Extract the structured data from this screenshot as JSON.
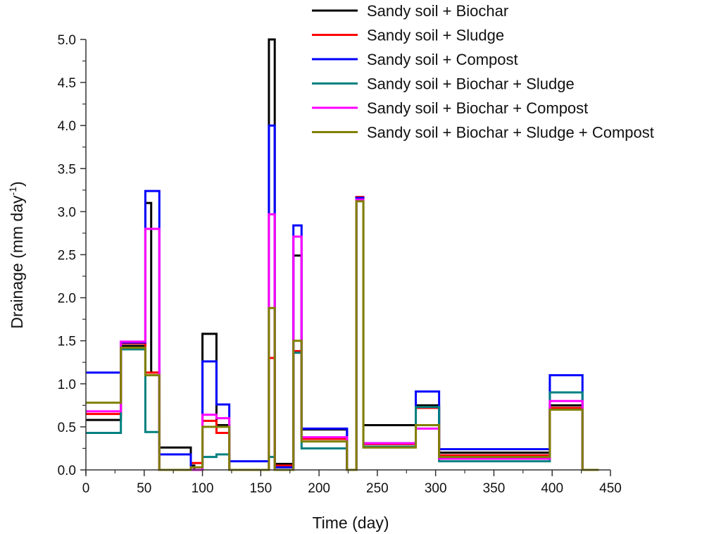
{
  "chart_data": {
    "type": "line",
    "title": "",
    "xlabel": "Time (day)",
    "ylabel_main": "Drainage (mm day",
    "ylabel_sup": "-1",
    "ylabel_close": ")",
    "xlim": [
      0,
      450
    ],
    "ylim": [
      0,
      5.0
    ],
    "xticks": [
      0,
      50,
      100,
      150,
      200,
      250,
      300,
      350,
      400,
      450
    ],
    "xtick_labels": [
      "0",
      "50",
      "100",
      "150",
      "200",
      "250",
      "300",
      "350",
      "400",
      "450"
    ],
    "yticks": [
      0,
      0.5,
      1.0,
      1.5,
      2.0,
      2.5,
      3.0,
      3.5,
      4.0,
      4.5,
      5.0
    ],
    "ytick_labels": [
      "0.0",
      "0.5",
      "1.0",
      "1.5",
      "2.0",
      "2.5",
      "3.0",
      "3.5",
      "4.0",
      "4.5",
      "5.0"
    ],
    "grid": false,
    "legend_position": "top-right",
    "step": true,
    "series": [
      {
        "name": "Sandy soil + Biochar",
        "color": "#000000",
        "x": [
          0,
          30,
          51,
          56,
          63,
          90,
          93,
          100,
          112,
          123,
          156,
          157,
          162,
          178,
          185,
          224,
          232,
          238,
          283,
          303,
          398,
          426,
          440
        ],
        "values": [
          0.58,
          1.44,
          3.1,
          1.13,
          0.26,
          0.05,
          0.0,
          1.58,
          0.52,
          0.0,
          0.0,
          5.0,
          0.07,
          2.49,
          0.47,
          0.0,
          3.16,
          0.52,
          0.75,
          0.2,
          0.75,
          0.0,
          0.0
        ]
      },
      {
        "name": "Sandy soil + Sludge",
        "color": "#ff0000",
        "x": [
          0,
          30,
          51,
          56,
          63,
          90,
          93,
          100,
          112,
          123,
          156,
          157,
          162,
          178,
          185,
          224,
          232,
          238,
          283,
          303,
          398,
          426,
          440
        ],
        "values": [
          0.65,
          1.47,
          1.13,
          1.13,
          0.0,
          0.08,
          0.08,
          0.57,
          0.43,
          0.0,
          0.0,
          1.3,
          0.05,
          1.38,
          0.36,
          0.0,
          3.17,
          0.3,
          0.72,
          0.17,
          0.72,
          0.0,
          0.0
        ]
      },
      {
        "name": "Sandy soil + Compost",
        "color": "#0000ff",
        "x": [
          0,
          30,
          51,
          56,
          63,
          90,
          93,
          100,
          112,
          123,
          156,
          157,
          162,
          178,
          185,
          224,
          232,
          238,
          283,
          303,
          398,
          426,
          440
        ],
        "values": [
          1.13,
          1.48,
          3.24,
          3.24,
          0.18,
          0.0,
          0.0,
          1.26,
          0.76,
          0.1,
          0.1,
          4.0,
          0.03,
          2.84,
          0.48,
          0.0,
          3.16,
          0.31,
          0.91,
          0.24,
          1.1,
          0.0,
          0.0
        ]
      },
      {
        "name": "Sandy soil + Biochar + Sludge",
        "color": "#008080",
        "x": [
          0,
          30,
          51,
          56,
          63,
          90,
          93,
          100,
          112,
          123,
          156,
          157,
          162,
          178,
          185,
          224,
          232,
          238,
          283,
          303,
          398,
          426,
          440
        ],
        "values": [
          0.43,
          1.4,
          0.44,
          0.44,
          0.0,
          0.0,
          0.0,
          0.15,
          0.18,
          0.0,
          0.0,
          0.15,
          0.0,
          1.36,
          0.25,
          0.0,
          3.13,
          0.27,
          0.73,
          0.1,
          0.9,
          0.0,
          0.0
        ]
      },
      {
        "name": "Sandy soil + Biochar + Compost",
        "color": "#ff00ff",
        "x": [
          0,
          30,
          51,
          56,
          63,
          90,
          93,
          100,
          112,
          123,
          156,
          157,
          162,
          178,
          185,
          224,
          232,
          238,
          283,
          303,
          398,
          426,
          440
        ],
        "values": [
          0.68,
          1.49,
          2.8,
          2.8,
          0.0,
          0.0,
          0.0,
          0.64,
          0.6,
          0.0,
          0.0,
          2.97,
          0.0,
          2.71,
          0.38,
          0.0,
          3.14,
          0.31,
          0.48,
          0.13,
          0.8,
          0.0,
          0.0
        ]
      },
      {
        "name": "Sandy soil + Biochar + Sludge + Compost",
        "color": "#808000",
        "x": [
          0,
          30,
          51,
          56,
          63,
          90,
          93,
          100,
          112,
          123,
          156,
          157,
          162,
          178,
          185,
          224,
          232,
          238,
          283,
          303,
          398,
          426,
          440
        ],
        "values": [
          0.78,
          1.42,
          1.1,
          1.1,
          0.0,
          0.03,
          0.03,
          0.5,
          0.5,
          0.0,
          0.0,
          1.88,
          0.0,
          1.5,
          0.33,
          0.0,
          3.12,
          0.26,
          0.52,
          0.15,
          0.7,
          0.0,
          0.0
        ]
      }
    ]
  }
}
